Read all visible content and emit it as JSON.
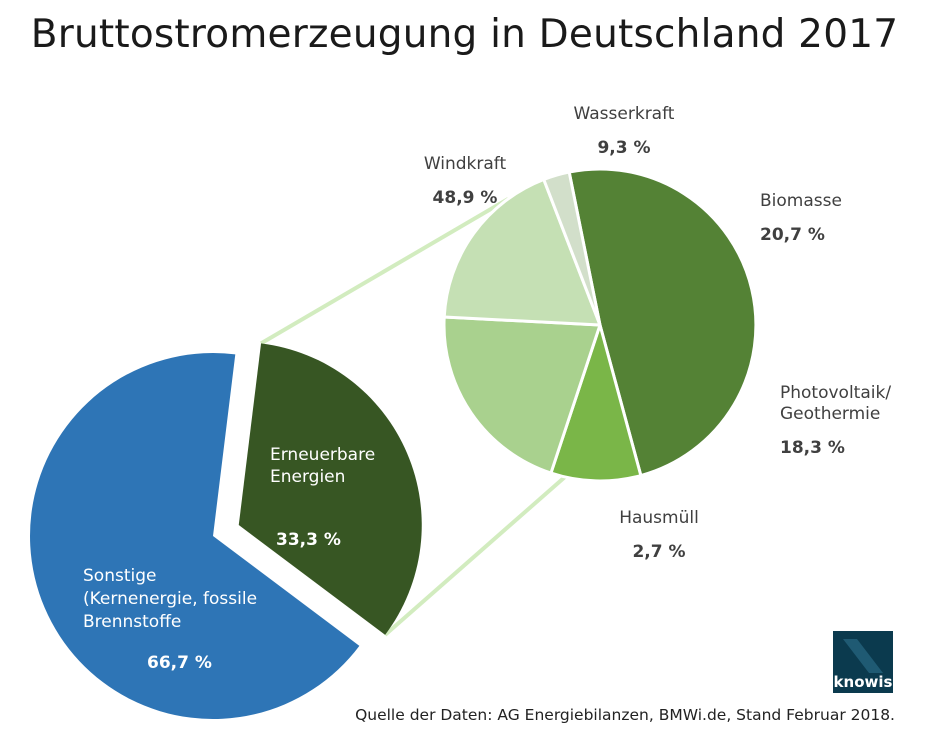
{
  "chart_data": [
    {
      "type": "pie",
      "title": "Bruttostromerzeugung in Deutschland 2017",
      "slices": [
        {
          "label_lines": [
            "Sonstige",
            "(Kernenergie, fossile",
            "Brennstoffe"
          ],
          "value": 66.7,
          "value_label": "66,7 %",
          "color": "#2e75b6"
        },
        {
          "label_lines": [
            "Erneuerbare",
            "Energien"
          ],
          "value": 33.3,
          "value_label": "33,3 %",
          "color": "#375623"
        }
      ]
    },
    {
      "type": "pie",
      "slices": [
        {
          "label_lines": [
            "Windkraft"
          ],
          "value": 48.9,
          "value_label": "48,9 %",
          "color": "#548235"
        },
        {
          "label_lines": [
            "Wasserkraft"
          ],
          "value": 9.3,
          "value_label": "9,3 %",
          "color": "#7ab648"
        },
        {
          "label_lines": [
            "Biomasse"
          ],
          "value": 20.7,
          "value_label": "20,7 %",
          "color": "#a9d18e"
        },
        {
          "label_lines": [
            "Photovoltaik/",
            "Geothermie"
          ],
          "value": 18.3,
          "value_label": "18,3 %",
          "color": "#c5e0b4"
        },
        {
          "label_lines": [
            "Hausmüll"
          ],
          "value": 2.7,
          "value_label": "2,7 %",
          "color": "#d2dfca"
        }
      ]
    }
  ],
  "source": "Quelle der Daten: AG Energiebilanzen, BMWi.de, Stand Februar 2018.",
  "logo": {
    "text": "knowis"
  },
  "colors": {
    "connector": "#d2ecbf",
    "label_text": "#404040",
    "inner_label_text": "#ffffff"
  }
}
